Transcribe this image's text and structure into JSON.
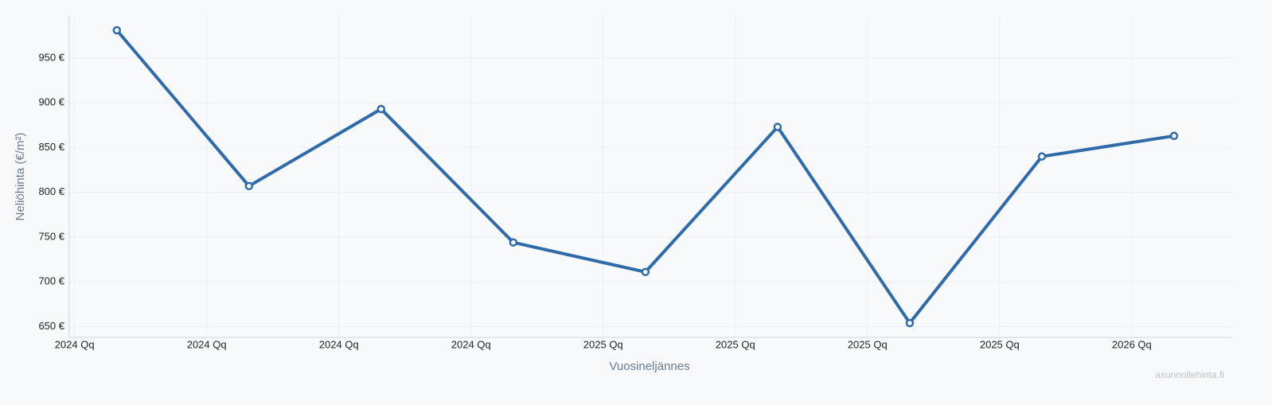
{
  "chart_data": {
    "type": "line",
    "x_label": "Vuosineljännes",
    "y_label": "Neliöhinta (€/m²)",
    "watermark": "asunnollehinta.fi",
    "x": [
      2024.08,
      2024.33,
      2024.58,
      2024.83,
      2025.08,
      2025.33,
      2025.58,
      2025.83,
      2026.08
    ],
    "series": [
      {
        "name": "Neliöhinta",
        "color": "#2f6ba8",
        "values": [
          981,
          807,
          893,
          744,
          711,
          873,
          654,
          840,
          863
        ]
      }
    ],
    "xlim": [
      2023.99,
      2026.19
    ],
    "xticks": [
      {
        "value": 2024,
        "label": "2024 Qq"
      },
      {
        "value": 2024.25,
        "label": "2024 Qq"
      },
      {
        "value": 2024.5,
        "label": "2024 Qq"
      },
      {
        "value": 2024.75,
        "label": "2024 Qq"
      },
      {
        "value": 2025,
        "label": "2025 Qq"
      },
      {
        "value": 2025.25,
        "label": "2025 Qq"
      },
      {
        "value": 2025.5,
        "label": "2025 Qq"
      },
      {
        "value": 2025.75,
        "label": "2025 Qq"
      },
      {
        "value": 2026,
        "label": "2026 Qq"
      }
    ],
    "ylim": [
      638,
      997
    ],
    "yticks": [
      {
        "value": 650,
        "label": "650 €"
      },
      {
        "value": 700,
        "label": "700 €"
      },
      {
        "value": 750,
        "label": "750 €"
      },
      {
        "value": 800,
        "label": "800 €"
      },
      {
        "value": 850,
        "label": "850 €"
      },
      {
        "value": 900,
        "label": "900 €"
      },
      {
        "value": 950,
        "label": "950 €"
      }
    ],
    "grid": true
  }
}
